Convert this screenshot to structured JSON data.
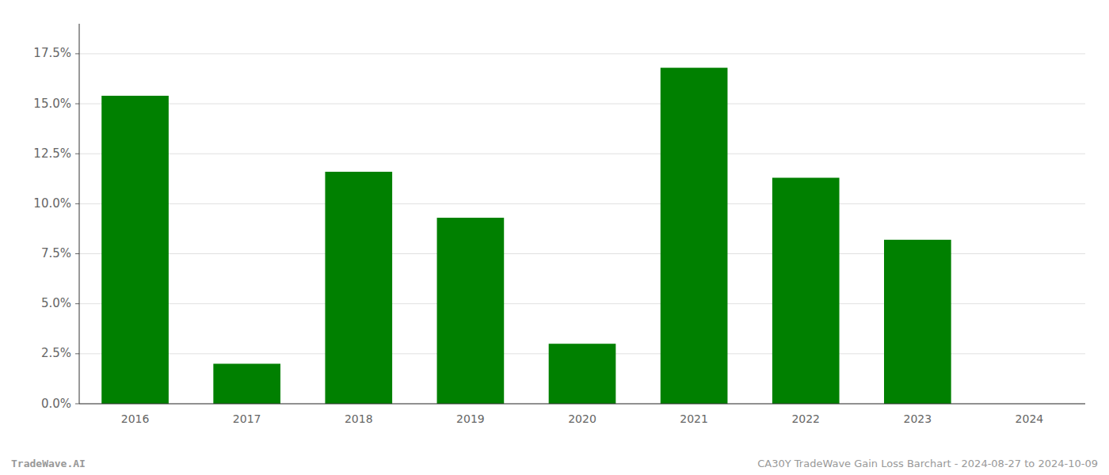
{
  "chart_data": {
    "type": "bar",
    "categories": [
      "2016",
      "2017",
      "2018",
      "2019",
      "2020",
      "2021",
      "2022",
      "2023",
      "2024"
    ],
    "values": [
      0.154,
      0.02,
      0.116,
      0.093,
      0.03,
      0.168,
      0.113,
      0.082,
      0.0
    ],
    "color": "#008000",
    "ylim": [
      0,
      0.19
    ],
    "yticks": [
      {
        "value": 0.0,
        "label": "0.0%"
      },
      {
        "value": 0.025,
        "label": "2.5%"
      },
      {
        "value": 0.05,
        "label": "5.0%"
      },
      {
        "value": 0.075,
        "label": "7.5%"
      },
      {
        "value": 0.1,
        "label": "10.0%"
      },
      {
        "value": 0.125,
        "label": "12.5%"
      },
      {
        "value": 0.15,
        "label": "15.0%"
      },
      {
        "value": 0.175,
        "label": "17.5%"
      }
    ],
    "grid": true,
    "annotations": [
      "TradeWave.AI",
      "CA30Y TradeWave Gain Loss Barchart - 2024-08-27 to 2024-10-09"
    ]
  }
}
